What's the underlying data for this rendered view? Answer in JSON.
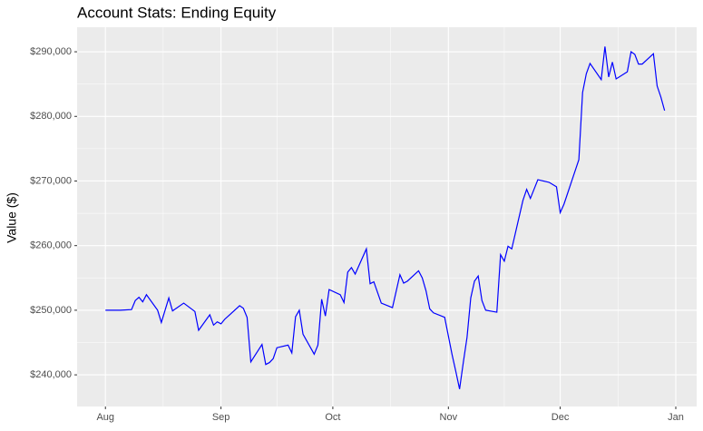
{
  "chart_data": {
    "type": "line",
    "title": "Account Stats: Ending Equity",
    "y_label": "Value ($)",
    "x": [
      0,
      4,
      7,
      8,
      9,
      10,
      11,
      14,
      15,
      17,
      18,
      21,
      24,
      25,
      28,
      29,
      30,
      31,
      32,
      36,
      37,
      38,
      39,
      42,
      43,
      44,
      45,
      46,
      49,
      50,
      51,
      52,
      53,
      56,
      57,
      58,
      59,
      60,
      63,
      64,
      65,
      66,
      67,
      70,
      71,
      72,
      74,
      77,
      79,
      80,
      81,
      84,
      85,
      86,
      87,
      88,
      91,
      92,
      93,
      94,
      95,
      96,
      97,
      98,
      99,
      100,
      101,
      102,
      105,
      106,
      107,
      108,
      109,
      112,
      113,
      114,
      116,
      119,
      121,
      122,
      123,
      127,
      128,
      129,
      130,
      133,
      134,
      135,
      136,
      137,
      140,
      141,
      142,
      143,
      144,
      147,
      148,
      149,
      150
    ],
    "series": [
      {
        "name": "Ending Equity",
        "color": "#0000ff",
        "values": [
          250000,
          250000,
          250100,
          251500,
          252000,
          251300,
          252400,
          250000,
          248100,
          251900,
          249900,
          251100,
          249800,
          246900,
          249300,
          247700,
          248200,
          247900,
          248600,
          250700,
          250300,
          248900,
          242000,
          244700,
          241600,
          241900,
          242500,
          244200,
          244600,
          243400,
          249000,
          250000,
          246300,
          243200,
          244600,
          251700,
          249100,
          253200,
          252400,
          251200,
          255900,
          256600,
          255600,
          259500,
          254100,
          254400,
          251100,
          250400,
          255500,
          254200,
          254500,
          256100,
          255000,
          253000,
          250200,
          249600,
          248900,
          246000,
          243100,
          240500,
          237800,
          241900,
          245800,
          251900,
          254500,
          255300,
          251500,
          250000,
          249700,
          258600,
          257600,
          259900,
          259500,
          267000,
          268700,
          267300,
          270200,
          269800,
          269100,
          265100,
          266400,
          273300,
          283700,
          286600,
          288200,
          285700,
          290800,
          286100,
          288400,
          285800,
          286900,
          290000,
          289600,
          288100,
          288100,
          289700,
          284700,
          283000,
          280900
        ]
      }
    ],
    "xlim": [
      -7.6,
      158.6
    ],
    "xticks": [
      {
        "value": 0,
        "label": "Aug"
      },
      {
        "value": 31,
        "label": "Sep"
      },
      {
        "value": 61,
        "label": "Oct"
      },
      {
        "value": 92,
        "label": "Nov"
      },
      {
        "value": 122,
        "label": "Dec"
      },
      {
        "value": 153,
        "label": "Jan"
      }
    ],
    "ylim": [
      235100,
      293800
    ],
    "yticks": [
      {
        "value": 240000,
        "label": "$240,000"
      },
      {
        "value": 250000,
        "label": "$250,000"
      },
      {
        "value": 260000,
        "label": "$260,000"
      },
      {
        "value": 270000,
        "label": "$270,000"
      },
      {
        "value": 280000,
        "label": "$280,000"
      },
      {
        "value": 290000,
        "label": "$290,000"
      }
    ],
    "grid": true
  }
}
